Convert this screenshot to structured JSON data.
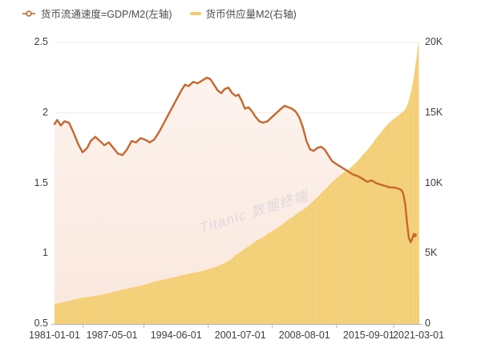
{
  "watermark": "Titanic 数据终端",
  "chart_data": {
    "type": "combo",
    "colors": {
      "line": "#c7672e",
      "line_area_top": "#fdf3ee",
      "line_area_bottom": "#f9e7dd",
      "bar_fill": "#f8d987",
      "bar_stripe": "#ecc164",
      "bar_legend": "#f2cb6d",
      "grid": "#f4e8e3",
      "axis_line": "#b9b2ad",
      "tick_text": "#3d3d3d",
      "legend_text": "#4d4d4d",
      "watermark": "#cfc9da"
    },
    "x_axis": {
      "range": [
        1981.0,
        2021.25
      ],
      "ticks": [
        {
          "label": "1981-01-01",
          "value": 1981.0
        },
        {
          "label": "1987-05-01",
          "value": 1987.33
        },
        {
          "label": "1994-06-01",
          "value": 1994.42
        },
        {
          "label": "2001-07-01",
          "value": 2001.5
        },
        {
          "label": "2008-08-01",
          "value": 2008.58
        },
        {
          "label": "2015-09-01",
          "value": 2015.67
        },
        {
          "label": "2021-03-01",
          "value": 2021.17
        }
      ]
    },
    "left_axis": {
      "range": [
        0.5,
        2.5
      ],
      "ticks": [
        {
          "label": "0.5",
          "value": 0.5
        },
        {
          "label": "1",
          "value": 1
        },
        {
          "label": "1.5",
          "value": 1.5
        },
        {
          "label": "2",
          "value": 2
        },
        {
          "label": "2.5",
          "value": 2.5
        }
      ]
    },
    "right_axis": {
      "range": [
        0,
        20
      ],
      "ticks": [
        {
          "label": "0",
          "value": 0
        },
        {
          "label": "5K",
          "value": 5
        },
        {
          "label": "10K",
          "value": 10
        },
        {
          "label": "15K",
          "value": 15
        },
        {
          "label": "20K",
          "value": 20
        }
      ]
    },
    "series": [
      {
        "name": "货币流通速度=GDP/M2(左轴)",
        "type": "line",
        "axis": "left",
        "points": [
          [
            1981.0,
            1.92
          ],
          [
            1981.3,
            1.95
          ],
          [
            1981.7,
            1.91
          ],
          [
            1982.1,
            1.94
          ],
          [
            1982.6,
            1.93
          ],
          [
            1983.1,
            1.86
          ],
          [
            1983.6,
            1.78
          ],
          [
            1984.1,
            1.72
          ],
          [
            1984.6,
            1.75
          ],
          [
            1985.0,
            1.8
          ],
          [
            1985.5,
            1.83
          ],
          [
            1986.0,
            1.8
          ],
          [
            1986.5,
            1.77
          ],
          [
            1987.0,
            1.79
          ],
          [
            1987.5,
            1.75
          ],
          [
            1988.0,
            1.71
          ],
          [
            1988.5,
            1.7
          ],
          [
            1989.0,
            1.74
          ],
          [
            1989.5,
            1.8
          ],
          [
            1990.0,
            1.79
          ],
          [
            1990.5,
            1.82
          ],
          [
            1991.0,
            1.81
          ],
          [
            1991.5,
            1.79
          ],
          [
            1992.0,
            1.81
          ],
          [
            1992.5,
            1.86
          ],
          [
            1993.0,
            1.92
          ],
          [
            1993.5,
            1.98
          ],
          [
            1994.0,
            2.04
          ],
          [
            1994.5,
            2.1
          ],
          [
            1995.0,
            2.16
          ],
          [
            1995.4,
            2.2
          ],
          [
            1995.8,
            2.19
          ],
          [
            1996.3,
            2.22
          ],
          [
            1996.8,
            2.21
          ],
          [
            1997.3,
            2.23
          ],
          [
            1997.8,
            2.25
          ],
          [
            1998.2,
            2.24
          ],
          [
            1998.6,
            2.2
          ],
          [
            1999.0,
            2.16
          ],
          [
            1999.4,
            2.14
          ],
          [
            1999.8,
            2.17
          ],
          [
            2000.2,
            2.18
          ],
          [
            2000.6,
            2.14
          ],
          [
            2001.0,
            2.12
          ],
          [
            2001.3,
            2.13
          ],
          [
            2001.7,
            2.08
          ],
          [
            2002.0,
            2.03
          ],
          [
            2002.4,
            2.04
          ],
          [
            2002.8,
            2.01
          ],
          [
            2003.2,
            1.97
          ],
          [
            2003.6,
            1.94
          ],
          [
            2004.0,
            1.93
          ],
          [
            2004.5,
            1.94
          ],
          [
            2005.0,
            1.97
          ],
          [
            2005.5,
            2.0
          ],
          [
            2006.0,
            2.03
          ],
          [
            2006.4,
            2.05
          ],
          [
            2006.8,
            2.04
          ],
          [
            2007.2,
            2.03
          ],
          [
            2007.6,
            2.01
          ],
          [
            2008.0,
            1.97
          ],
          [
            2008.4,
            1.9
          ],
          [
            2008.8,
            1.8
          ],
          [
            2009.2,
            1.74
          ],
          [
            2009.6,
            1.73
          ],
          [
            2010.0,
            1.75
          ],
          [
            2010.4,
            1.76
          ],
          [
            2010.8,
            1.74
          ],
          [
            2011.2,
            1.7
          ],
          [
            2011.6,
            1.66
          ],
          [
            2012.0,
            1.64
          ],
          [
            2012.5,
            1.62
          ],
          [
            2013.0,
            1.6
          ],
          [
            2013.5,
            1.58
          ],
          [
            2014.0,
            1.56
          ],
          [
            2014.5,
            1.55
          ],
          [
            2015.0,
            1.53
          ],
          [
            2015.5,
            1.51
          ],
          [
            2016.0,
            1.52
          ],
          [
            2016.5,
            1.5
          ],
          [
            2017.0,
            1.49
          ],
          [
            2017.5,
            1.48
          ],
          [
            2018.0,
            1.47
          ],
          [
            2018.5,
            1.47
          ],
          [
            2019.0,
            1.46
          ],
          [
            2019.3,
            1.45
          ],
          [
            2019.5,
            1.42
          ],
          [
            2019.7,
            1.35
          ],
          [
            2019.9,
            1.22
          ],
          [
            2020.1,
            1.11
          ],
          [
            2020.3,
            1.08
          ],
          [
            2020.5,
            1.11
          ],
          [
            2020.65,
            1.14
          ],
          [
            2020.75,
            1.13
          ]
        ]
      },
      {
        "name": "货币供应量M2(右轴)",
        "type": "bar",
        "axis": "right",
        "points": [
          [
            1981.0,
            1.4
          ],
          [
            1982,
            1.55
          ],
          [
            1983,
            1.7
          ],
          [
            1984,
            1.85
          ],
          [
            1985,
            1.95
          ],
          [
            1986,
            2.05
          ],
          [
            1987,
            2.2
          ],
          [
            1988,
            2.35
          ],
          [
            1989,
            2.5
          ],
          [
            1990,
            2.65
          ],
          [
            1991,
            2.8
          ],
          [
            1992,
            3.0
          ],
          [
            1993,
            3.15
          ],
          [
            1994,
            3.3
          ],
          [
            1995,
            3.45
          ],
          [
            1996,
            3.6
          ],
          [
            1997,
            3.72
          ],
          [
            1998,
            3.88
          ],
          [
            1999,
            4.1
          ],
          [
            2000,
            4.4
          ],
          [
            2000.5,
            4.6
          ],
          [
            2001,
            4.9
          ],
          [
            2001.5,
            5.1
          ],
          [
            2002,
            5.35
          ],
          [
            2002.5,
            5.55
          ],
          [
            2003,
            5.8
          ],
          [
            2003.5,
            6.0
          ],
          [
            2004,
            6.15
          ],
          [
            2004.5,
            6.4
          ],
          [
            2005,
            6.6
          ],
          [
            2005.5,
            6.8
          ],
          [
            2006,
            7.0
          ],
          [
            2006.5,
            7.25
          ],
          [
            2007,
            7.5
          ],
          [
            2007.5,
            7.7
          ],
          [
            2008,
            7.95
          ],
          [
            2008.5,
            8.15
          ],
          [
            2009,
            8.4
          ],
          [
            2009.5,
            8.7
          ],
          [
            2010,
            9.0
          ],
          [
            2010.5,
            9.35
          ],
          [
            2011,
            9.65
          ],
          [
            2011.5,
            10.0
          ],
          [
            2012,
            10.3
          ],
          [
            2012.5,
            10.55
          ],
          [
            2013,
            10.8
          ],
          [
            2013.5,
            11.0
          ],
          [
            2014,
            11.3
          ],
          [
            2014.5,
            11.6
          ],
          [
            2015,
            12.0
          ],
          [
            2015.5,
            12.35
          ],
          [
            2016,
            12.75
          ],
          [
            2016.5,
            13.2
          ],
          [
            2017,
            13.6
          ],
          [
            2017.5,
            14.0
          ],
          [
            2018,
            14.35
          ],
          [
            2018.5,
            14.6
          ],
          [
            2019,
            14.85
          ],
          [
            2019.3,
            15.0
          ],
          [
            2019.6,
            15.15
          ],
          [
            2019.9,
            15.5
          ],
          [
            2020.1,
            15.9
          ],
          [
            2020.3,
            16.4
          ],
          [
            2020.5,
            17.0
          ],
          [
            2020.7,
            17.8
          ],
          [
            2020.9,
            18.7
          ],
          [
            2021.0,
            19.2
          ],
          [
            2021.1,
            19.7
          ],
          [
            2021.2,
            20.0
          ]
        ]
      }
    ]
  }
}
